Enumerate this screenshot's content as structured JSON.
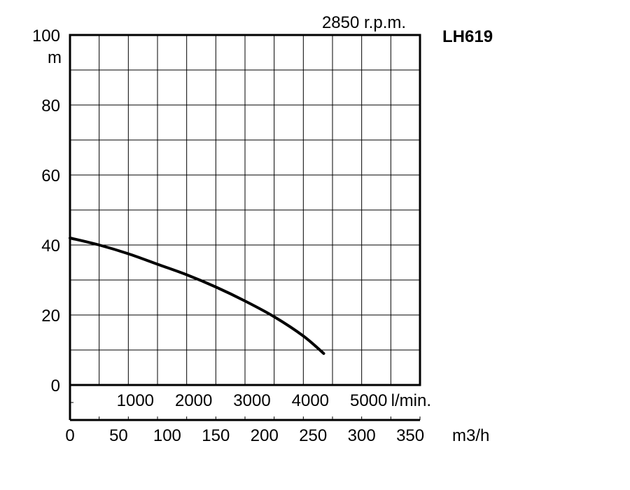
{
  "chart_data": {
    "type": "line",
    "title": "LH619",
    "subtitle": "2850 r.p.m.",
    "ylabel": "m",
    "xlabel": "m3/h",
    "secondary_xlabel": "l/min.",
    "ylim": [
      0,
      100
    ],
    "xlim": [
      0,
      360
    ],
    "yticks": [
      0,
      20,
      40,
      60,
      80,
      100
    ],
    "xticks": [
      0,
      50,
      100,
      150,
      200,
      250,
      300,
      350
    ],
    "secondary_xticks": [
      1000,
      2000,
      3000,
      4000,
      5000
    ],
    "grid": true,
    "series": [
      {
        "x": [
          0,
          30,
          60,
          90,
          120,
          150,
          180,
          210,
          240,
          261
        ],
        "y": [
          42,
          40,
          37.5,
          34.5,
          31.5,
          28,
          24,
          19.5,
          14,
          9
        ]
      }
    ]
  }
}
